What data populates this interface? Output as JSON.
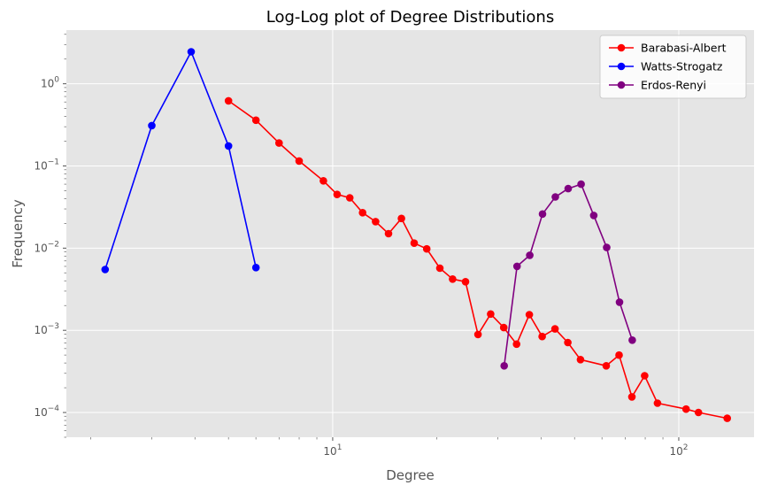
{
  "chart_data": {
    "type": "line",
    "title": "Log-Log plot of Degree Distributions",
    "xlabel": "Degree",
    "ylabel": "Frequency",
    "xscale": "log",
    "yscale": "log",
    "xlim": [
      1.7,
      165
    ],
    "ylim": [
      5e-05,
      4.5
    ],
    "grid": true,
    "legend_position": "top-right",
    "x_ticks": [
      {
        "value": 10,
        "base": "10",
        "exp": "1"
      },
      {
        "value": 100,
        "base": "10",
        "exp": "2"
      }
    ],
    "y_ticks": [
      {
        "value": 0.0001,
        "base": "10",
        "exp": "−4"
      },
      {
        "value": 0.001,
        "base": "10",
        "exp": "−3"
      },
      {
        "value": 0.01,
        "base": "10",
        "exp": "−2"
      },
      {
        "value": 0.1,
        "base": "10",
        "exp": "−1"
      },
      {
        "value": 1,
        "base": "10",
        "exp": "0"
      }
    ],
    "series": [
      {
        "name": "Barabasi-Albert",
        "color": "#ff0000",
        "points": [
          [
            5,
            0.62
          ],
          [
            6,
            0.36
          ],
          [
            7,
            0.19
          ],
          [
            8,
            0.115
          ],
          [
            9.4,
            0.066
          ],
          [
            10.3,
            0.045
          ],
          [
            11.2,
            0.041
          ],
          [
            12.2,
            0.027
          ],
          [
            13.3,
            0.021
          ],
          [
            14.5,
            0.015
          ],
          [
            15.8,
            0.023
          ],
          [
            17.2,
            0.0115
          ],
          [
            18.7,
            0.0098
          ],
          [
            20.4,
            0.0057
          ],
          [
            22.2,
            0.0042
          ],
          [
            24.2,
            0.0039
          ],
          [
            26.3,
            0.00089
          ],
          [
            28.6,
            0.00158
          ],
          [
            31.2,
            0.00108
          ],
          [
            34,
            0.00068
          ],
          [
            37,
            0.00155
          ],
          [
            40.3,
            0.00084
          ],
          [
            43.9,
            0.00104
          ],
          [
            47.8,
            0.00071
          ],
          [
            52,
            0.00044
          ],
          [
            61.7,
            0.00037
          ],
          [
            67.2,
            0.0005
          ],
          [
            73.2,
            0.000155
          ],
          [
            79.7,
            0.00028
          ],
          [
            86.8,
            0.00013
          ],
          [
            105,
            0.00011
          ],
          [
            114,
            0.0001
          ],
          [
            138,
            8.5e-05
          ]
        ]
      },
      {
        "name": "Watts-Strogatz",
        "color": "#0000ff",
        "points": [
          [
            2.2,
            0.0055
          ],
          [
            3,
            0.31
          ],
          [
            3.9,
            2.45
          ],
          [
            5,
            0.175
          ],
          [
            6,
            0.0058
          ]
        ]
      },
      {
        "name": "Erdos-Renyi",
        "color": "#800080",
        "points": [
          [
            31.3,
            0.00037
          ],
          [
            34.1,
            0.006
          ],
          [
            37.1,
            0.0082
          ],
          [
            40.4,
            0.026
          ],
          [
            44,
            0.042
          ],
          [
            47.9,
            0.053
          ],
          [
            52.2,
            0.06
          ],
          [
            56.8,
            0.025
          ],
          [
            61.9,
            0.0102
          ],
          [
            67.4,
            0.0022
          ],
          [
            73.4,
            0.00076
          ]
        ]
      }
    ]
  }
}
